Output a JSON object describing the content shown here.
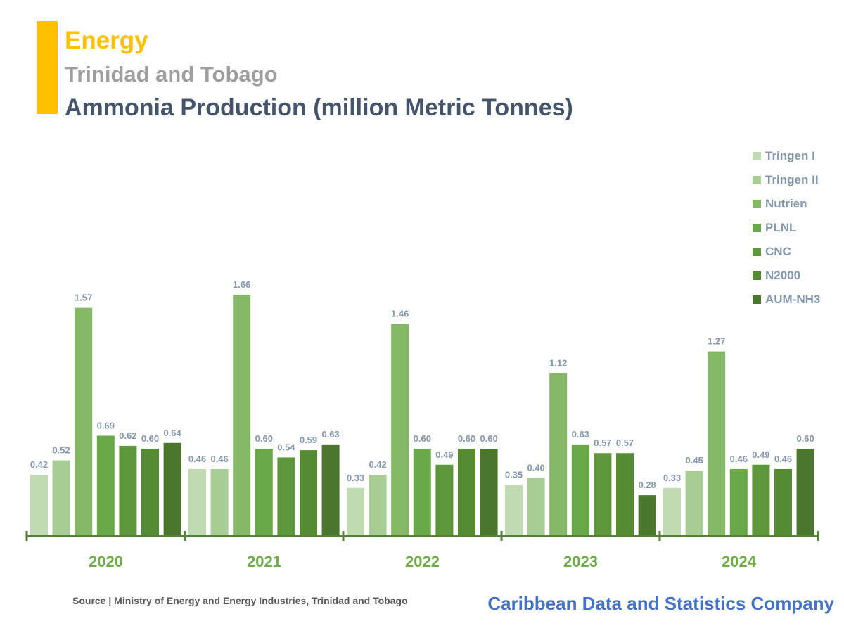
{
  "header": {
    "category": "Energy",
    "country": "Trinidad and Tobago",
    "title": "Ammonia Production (million Metric Tonnes)"
  },
  "colors": {
    "accent": "#ffc000",
    "axis": "#548235",
    "year_label": "#70ad47",
    "value_label": "#8497b0"
  },
  "chart_data": {
    "type": "bar",
    "title": "Ammonia Production (million Metric Tonnes)",
    "categories": [
      "2020",
      "2021",
      "2022",
      "2023",
      "2024"
    ],
    "ylim": [
      0,
      1.8
    ],
    "grid": false,
    "legend_position": "right",
    "series": [
      {
        "name": "Tringen I",
        "color": "#c0dbb1",
        "values": [
          0.42,
          0.46,
          0.33,
          0.35,
          0.33
        ],
        "labels": [
          "0.42",
          "0.46",
          "0.33",
          "0.35",
          "0.33"
        ]
      },
      {
        "name": "Tringen II",
        "color": "#a7cd94",
        "values": [
          0.52,
          0.46,
          0.42,
          0.4,
          0.45
        ],
        "labels": [
          "0.52",
          "0.46",
          "0.42",
          "0.40",
          "0.45"
        ]
      },
      {
        "name": "Nutrien",
        "color": "#84b867",
        "values": [
          1.57,
          1.66,
          1.46,
          1.12,
          1.27
        ],
        "labels": [
          "1.57",
          "1.66",
          "1.46",
          "1.12",
          "1.27"
        ]
      },
      {
        "name": "PLNL",
        "color": "#6aa948",
        "values": [
          0.69,
          0.6,
          0.6,
          0.63,
          0.46
        ],
        "labels": [
          "0.69",
          "0.60",
          "0.60",
          "0.63",
          "0.46"
        ]
      },
      {
        "name": "CNC",
        "color": "#5e963b",
        "values": [
          0.62,
          0.54,
          0.49,
          0.57,
          0.49
        ],
        "labels": [
          "0.62",
          "0.54",
          "0.49",
          "0.57",
          "0.49"
        ]
      },
      {
        "name": "N2000",
        "color": "#548b33",
        "values": [
          0.6,
          0.59,
          0.6,
          0.57,
          0.46
        ],
        "labels": [
          "0.60",
          "0.59",
          "0.60",
          "0.57",
          "0.46"
        ]
      },
      {
        "name": "AUM-NH3",
        "color": "#4a772d",
        "values": [
          0.64,
          0.63,
          0.6,
          0.28,
          0.6
        ],
        "labels": [
          "0.64",
          "0.63",
          "0.60",
          "0.28",
          "0.60"
        ]
      }
    ]
  },
  "footer": {
    "source": "Source | Ministry of Energy and Energy Industries, Trinidad and Tobago",
    "brand": "Caribbean Data and Statistics Company"
  }
}
